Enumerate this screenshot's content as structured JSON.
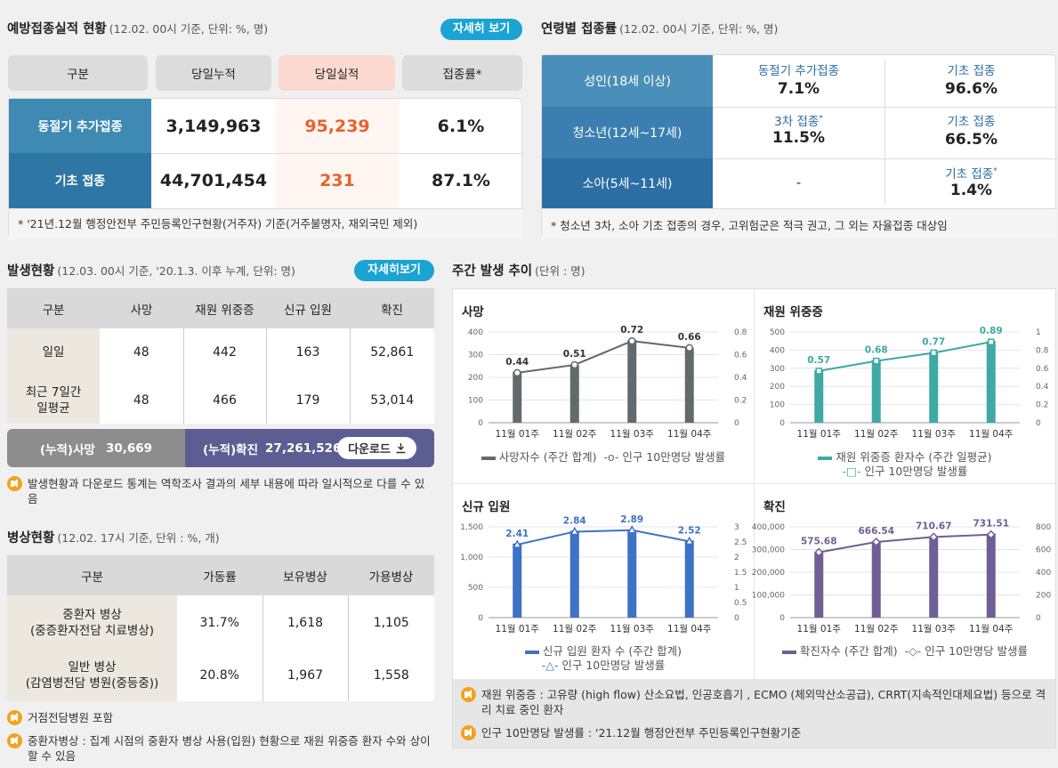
{
  "vaccination": {
    "title": "예방접종실적 현황",
    "subtitle": "(12.02. 00시 기준, 단위: %, 명)",
    "more_label": "자세히 보기",
    "headers": [
      "구분",
      "당일누적",
      "당일실적",
      "접종률*"
    ],
    "rows": [
      {
        "label": "동절기 추가접종",
        "cumulative": "3,149,963",
        "daily": "95,239",
        "rate": "6.1%"
      },
      {
        "label": "기초 접종",
        "cumulative": "44,701,454",
        "daily": "231",
        "rate": "87.1%"
      }
    ],
    "footnote": "* '21년.12월 행정안전부 주민등록인구현황(거주자) 기준(거주불명자, 재외국민 제외)"
  },
  "age": {
    "title": "연령별 접종률",
    "subtitle": "(12.02. 00시 기준, 단위: %, 명)",
    "rows": [
      {
        "label": "성인(18세 이상)",
        "c1_name": "동절기 추가접종",
        "c1_val": "7.1%",
        "c2_name": "기초 접종",
        "c2_val": "96.6%"
      },
      {
        "label": "청소년(12세~17세)",
        "c1_name": "3차 접종",
        "c1_val": "11.5%",
        "c2_name": "기초 접종",
        "c2_val": "66.5%"
      },
      {
        "label": "소아(5세~11세)",
        "c1_val": "-",
        "c2_name": "기초 접종",
        "c2_val": "1.4%"
      }
    ],
    "star": "*",
    "footnote": "* 청소년 3차, 소아 기초 접종의 경우, 고위험군은 적극 권고, 그 외는 자율접종 대상임"
  },
  "occurrence": {
    "title": "발생현황",
    "subtitle": "(12.03. 00시 기준, '20.1.3. 이후 누계, 단위: 명)",
    "more_label": "자세히보기",
    "headers": [
      "구분",
      "사망",
      "재원 위중증",
      "신규 입원",
      "확진"
    ],
    "rows": [
      {
        "label": "일일",
        "deaths": "48",
        "severe": "442",
        "admitted": "163",
        "confirmed": "52,861"
      },
      {
        "label": "최근 7일간\n일평균",
        "deaths": "48",
        "severe": "466",
        "admitted": "179",
        "confirmed": "53,014"
      }
    ],
    "cum_deaths_label": "(누적)사망",
    "cum_deaths": "30,669",
    "cum_confirmed_label": "(누적)확진",
    "cum_confirmed": "27,261,526",
    "download_label": "다운로드",
    "note": "발생현황과 다운로드 통계는 역학조사 결과의 세부 내용에 따라 일시적으로 다를 수 있음"
  },
  "beds": {
    "title": "병상현황",
    "subtitle": "(12.02. 17시 기준, 단위 : %, 개)",
    "headers": [
      "구분",
      "가동률",
      "보유병상",
      "가용병상"
    ],
    "rows": [
      {
        "label": "중환자 병상\n(중증환자전담 치료병상)",
        "rate": "31.7%",
        "total": "1,618",
        "available": "1,105"
      },
      {
        "label": "일반 병상\n(감염병전담 병원(중등중))",
        "rate": "20.8%",
        "total": "1,967",
        "available": "1,558"
      }
    ],
    "note1": "거점전담병원 포함",
    "note2": "중환자병상 : 집계 시점의 중환자 병상 사용(입원) 현황으로 재원 위중증 환자 수와 상이할 수 있음"
  },
  "weekly": {
    "title": "주간 발생 추이",
    "subtitle": "(단위 : 명)",
    "note1": "재원 위중증 : 고유량 (high flow) 산소요법, 인공호흡기 , ECMO (체외막산소공급), CRRT(지속적인대체요법) 등으로 격리 치료 중인 환자",
    "note2": "인구 10만명당 발생률 : '21.12월 행정안전부 주민등록인구현황기준"
  },
  "chart_data": [
    {
      "type": "bar",
      "title": "사망",
      "categories": [
        "11월 01주",
        "11월 02주",
        "11월 03주",
        "11월 04주"
      ],
      "series": [
        {
          "name": "사망자수 (주간 합계)",
          "values": [
            225,
            255,
            365,
            330
          ]
        },
        {
          "name": "인구 10만명당 발생률",
          "values": [
            0.44,
            0.51,
            0.72,
            0.66
          ],
          "axis": "right"
        }
      ],
      "ylim": [
        0,
        400
      ],
      "yticks": [
        "0",
        "100",
        "200",
        "300",
        "400"
      ],
      "y2lim": [
        0,
        0.8
      ],
      "y2ticks": [
        "0",
        "0.2",
        "0.4",
        "0.6",
        "0.8"
      ],
      "line_labels": [
        "0.44",
        "0.51",
        "0.72",
        "0.66"
      ],
      "bar_color": "#636a6e",
      "line_color": "#636a6e",
      "marker": "circle"
    },
    {
      "type": "bar",
      "title": "재원 위중증",
      "categories": [
        "11월 01주",
        "11월 02주",
        "11월 03주",
        "11월 04주"
      ],
      "series": [
        {
          "name": "재원 위중증 환자수 (주간 일평균)",
          "values": [
            290,
            345,
            390,
            450
          ]
        },
        {
          "name": "인구 10만명당 발생률",
          "values": [
            0.57,
            0.68,
            0.77,
            0.89
          ],
          "axis": "right"
        }
      ],
      "ylim": [
        0,
        500
      ],
      "yticks": [
        "0",
        "100",
        "200",
        "300",
        "400",
        "500"
      ],
      "y2lim": [
        0,
        1
      ],
      "y2ticks": [
        "0",
        "0.2",
        "0.4",
        "0.6",
        "0.8",
        "1"
      ],
      "line_labels": [
        "0.57",
        "0.68",
        "0.77",
        "0.89"
      ],
      "bar_color": "#3fa9a6",
      "line_color": "#3fa9a6",
      "marker": "square"
    },
    {
      "type": "bar",
      "title": "신규 입원",
      "categories": [
        "11월 01주",
        "11월 02주",
        "11월 03주",
        "11월 04주"
      ],
      "series": [
        {
          "name": "신규 입원 환자 수 (주간 합계)",
          "values": [
            1225,
            1435,
            1445,
            1275
          ]
        },
        {
          "name": "인구 10만명당 발생률",
          "values": [
            2.41,
            2.84,
            2.89,
            2.52
          ],
          "axis": "right"
        }
      ],
      "ylim": [
        0,
        1500
      ],
      "yticks": [
        "0",
        "500",
        "1,000",
        "1,500"
      ],
      "y2lim": [
        0,
        3
      ],
      "y2ticks": [
        "0",
        "0.5",
        "1",
        "1.5",
        "2",
        "2.5",
        "3"
      ],
      "line_labels": [
        "2.41",
        "2.84",
        "2.89",
        "2.52"
      ],
      "bar_color": "#3d72c4",
      "line_color": "#3d72c4",
      "marker": "triangle"
    },
    {
      "type": "bar",
      "title": "확진",
      "categories": [
        "11월 01주",
        "11월 02주",
        "11월 03주",
        "11월 04주"
      ],
      "series": [
        {
          "name": "확진자수 (주간 합계)",
          "values": [
            290000,
            335000,
            355000,
            370000
          ]
        },
        {
          "name": "인구 10만명당 발생률",
          "values": [
            575.68,
            666.54,
            710.67,
            731.51
          ],
          "axis": "right"
        }
      ],
      "ylim": [
        0,
        400000
      ],
      "yticks": [
        "0",
        "100,000",
        "200,000",
        "300,000",
        "400,000"
      ],
      "y2lim": [
        0,
        800
      ],
      "y2ticks": [
        "0",
        "200",
        "400",
        "600",
        "800"
      ],
      "line_labels": [
        "575.68",
        "666.54",
        "710.67",
        "731.51"
      ],
      "bar_color": "#6f5f96",
      "line_color": "#6f5f96",
      "marker": "diamond"
    }
  ]
}
